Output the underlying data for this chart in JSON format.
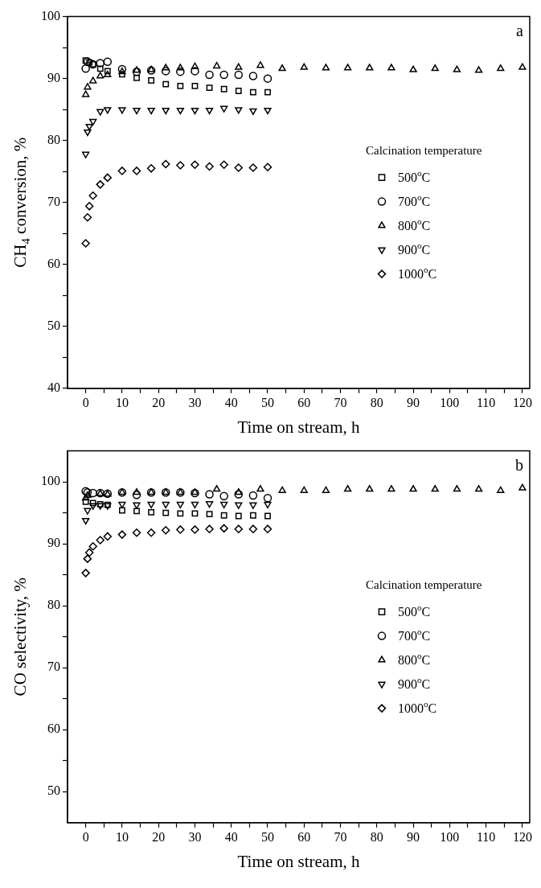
{
  "chart_data": [
    {
      "type": "scatter",
      "annotations": [
        "a"
      ],
      "xlabel": "Time on stream, h",
      "ylabel": "CH$_{4}$ conversion, %",
      "legend_title": "Calcination temperature",
      "legend": "right",
      "grid": false,
      "xlim": [
        -5,
        122
      ],
      "xticks": [
        0,
        {
          "value": 5,
          "label": null
        },
        10,
        {
          "value": 15,
          "label": null
        },
        20,
        {
          "value": 25,
          "label": null
        },
        30,
        {
          "value": 35,
          "label": null
        },
        40,
        {
          "value": 45,
          "label": null
        },
        50,
        {
          "value": 55,
          "label": null
        },
        60,
        {
          "value": 65,
          "label": null
        },
        70,
        {
          "value": 75,
          "label": null
        },
        80,
        {
          "value": 85,
          "label": null
        },
        90,
        {
          "value": 95,
          "label": null
        },
        100,
        {
          "value": 105,
          "label": null
        },
        110,
        {
          "value": 115,
          "label": null
        },
        120
      ],
      "ylim": [
        40,
        100
      ],
      "yticks": [
        40,
        {
          "value": 45,
          "label": null
        },
        50,
        {
          "value": 55,
          "label": null
        },
        60,
        {
          "value": 65,
          "label": null
        },
        70,
        {
          "value": 75,
          "label": null
        },
        80,
        {
          "value": 85,
          "label": null
        },
        90,
        {
          "value": 95,
          "label": null
        },
        100
      ],
      "series": [
        {
          "name": "500$^{o}$C",
          "color": "#000000",
          "marker": "square",
          "x": [
            0,
            1,
            2,
            4,
            6,
            10,
            14,
            18,
            22,
            26,
            30,
            34,
            38,
            42,
            46,
            50
          ],
          "values": [
            92.9,
            92.6,
            92.3,
            91.6,
            91.2,
            90.7,
            90.1,
            89.7,
            89.1,
            88.8,
            88.8,
            88.5,
            88.3,
            88.0,
            87.8,
            87.8
          ]
        },
        {
          "name": "700$^{o}$C",
          "color": "#000000",
          "marker": "circle",
          "x": [
            0,
            0.5,
            2,
            4,
            6,
            10,
            14,
            18,
            22,
            26,
            30,
            34,
            38,
            42,
            46,
            50
          ],
          "values": [
            91.6,
            92.7,
            92.3,
            92.5,
            92.7,
            91.5,
            91.1,
            91.3,
            91.2,
            91.1,
            91.2,
            90.6,
            90.6,
            90.6,
            90.4,
            90.0
          ]
        },
        {
          "name": "800$^{o}$C",
          "color": "#000000",
          "marker": "triangle",
          "x": [
            0,
            0.5,
            2,
            4,
            6,
            10,
            14,
            18,
            22,
            26,
            30,
            36,
            42,
            48,
            54,
            60,
            66,
            72,
            78,
            84,
            90,
            96,
            102,
            108,
            114,
            120
          ],
          "values": [
            87.4,
            88.6,
            89.6,
            90.4,
            90.6,
            91.1,
            91.3,
            91.4,
            91.7,
            91.7,
            91.9,
            92.0,
            91.8,
            92.1,
            91.6,
            91.8,
            91.7,
            91.7,
            91.7,
            91.7,
            91.4,
            91.6,
            91.4,
            91.3,
            91.6,
            91.8
          ]
        },
        {
          "name": "900$^{o}$C",
          "color": "#000000",
          "marker": "triangle-down",
          "x": [
            0,
            0.5,
            1,
            2,
            4,
            6,
            10,
            14,
            18,
            22,
            26,
            30,
            34,
            38,
            42,
            46,
            50
          ],
          "values": [
            77.8,
            81.4,
            82.3,
            83.1,
            84.7,
            85.0,
            85.0,
            84.9,
            84.9,
            84.9,
            84.9,
            84.9,
            84.9,
            85.2,
            85.0,
            84.8,
            84.9
          ]
        },
        {
          "name": "1000$^{o}$C",
          "color": "#000000",
          "marker": "diamond",
          "x": [
            0,
            0.5,
            1,
            2,
            4,
            6,
            10,
            14,
            18,
            22,
            26,
            30,
            34,
            38,
            42,
            46,
            50
          ],
          "values": [
            63.4,
            67.6,
            69.4,
            71.1,
            72.9,
            74.0,
            75.1,
            75.1,
            75.5,
            76.2,
            76.0,
            76.1,
            75.8,
            76.1,
            75.6,
            75.6,
            75.7
          ]
        }
      ]
    },
    {
      "type": "scatter",
      "annotations": [
        "b"
      ],
      "xlabel": "Time on stream, h",
      "ylabel": "CO selectivity, %",
      "legend_title": "Calcination temperature",
      "legend": "right",
      "grid": false,
      "xlim": [
        -5,
        122
      ],
      "xticks": [
        0,
        {
          "value": 5,
          "label": null
        },
        10,
        {
          "value": 15,
          "label": null
        },
        20,
        {
          "value": 25,
          "label": null
        },
        30,
        {
          "value": 35,
          "label": null
        },
        40,
        {
          "value": 45,
          "label": null
        },
        50,
        {
          "value": 55,
          "label": null
        },
        60,
        {
          "value": 65,
          "label": null
        },
        70,
        {
          "value": 75,
          "label": null
        },
        80,
        {
          "value": 85,
          "label": null
        },
        90,
        {
          "value": 95,
          "label": null
        },
        100,
        {
          "value": 105,
          "label": null
        },
        110,
        {
          "value": 115,
          "label": null
        },
        120
      ],
      "ylim": [
        45,
        105
      ],
      "yticks": [
        50,
        {
          "value": 55,
          "label": null
        },
        60,
        {
          "value": 65,
          "label": null
        },
        70,
        {
          "value": 75,
          "label": null
        },
        80,
        {
          "value": 85,
          "label": null
        },
        90,
        {
          "value": 95,
          "label": null
        },
        100
      ],
      "series": [
        {
          "name": "500$^{o}$C",
          "color": "#000000",
          "marker": "square",
          "x": [
            0,
            2,
            4,
            6,
            10,
            14,
            18,
            22,
            26,
            30,
            34,
            38,
            42,
            46,
            50
          ],
          "values": [
            96.8,
            96.6,
            96.4,
            96.3,
            95.4,
            95.3,
            95.1,
            95.0,
            94.9,
            94.9,
            94.8,
            94.6,
            94.5,
            94.6,
            94.5
          ]
        },
        {
          "name": "700$^{o}$C",
          "color": "#000000",
          "marker": "circle",
          "x": [
            0,
            0.5,
            2,
            4,
            6,
            10,
            14,
            18,
            22,
            26,
            30,
            34,
            38,
            42,
            46,
            50
          ],
          "values": [
            98.5,
            98.3,
            98.2,
            98.2,
            98.1,
            98.3,
            97.9,
            98.3,
            98.3,
            98.3,
            98.2,
            98.0,
            97.7,
            98.0,
            97.8,
            97.4
          ]
        },
        {
          "name": "800$^{o}$C",
          "color": "#000000",
          "marker": "triangle",
          "x": [
            0,
            0.5,
            2,
            4,
            6,
            10,
            14,
            18,
            22,
            26,
            30,
            36,
            42,
            48,
            54,
            60,
            66,
            72,
            78,
            84,
            90,
            96,
            102,
            108,
            114,
            120
          ],
          "values": [
            97.4,
            97.8,
            null,
            98.1,
            98.0,
            98.3,
            98.3,
            98.3,
            98.3,
            98.3,
            98.3,
            98.8,
            98.3,
            98.8,
            98.6,
            98.6,
            98.6,
            98.8,
            98.8,
            98.8,
            98.8,
            98.8,
            98.8,
            98.8,
            98.6,
            99.0
          ]
        },
        {
          "name": "900$^{o}$C",
          "color": "#000000",
          "marker": "triangle-down",
          "x": [
            0,
            0.5,
            2,
            4,
            6,
            10,
            14,
            18,
            22,
            26,
            30,
            34,
            38,
            42,
            46,
            50
          ],
          "values": [
            93.8,
            95.4,
            96.2,
            96.2,
            96.2,
            96.4,
            96.3,
            96.4,
            96.4,
            96.4,
            96.4,
            96.5,
            96.4,
            96.3,
            96.3,
            96.4
          ]
        },
        {
          "name": "1000$^{o}$C",
          "color": "#000000",
          "marker": "diamond",
          "x": [
            0,
            0.5,
            1,
            2,
            4,
            6,
            10,
            14,
            18,
            22,
            26,
            30,
            34,
            38,
            42,
            46,
            50
          ],
          "values": [
            85.3,
            87.6,
            88.6,
            89.6,
            90.6,
            91.2,
            91.5,
            91.8,
            91.8,
            92.2,
            92.3,
            92.3,
            92.4,
            92.5,
            92.4,
            92.4,
            92.4
          ]
        }
      ]
    }
  ]
}
